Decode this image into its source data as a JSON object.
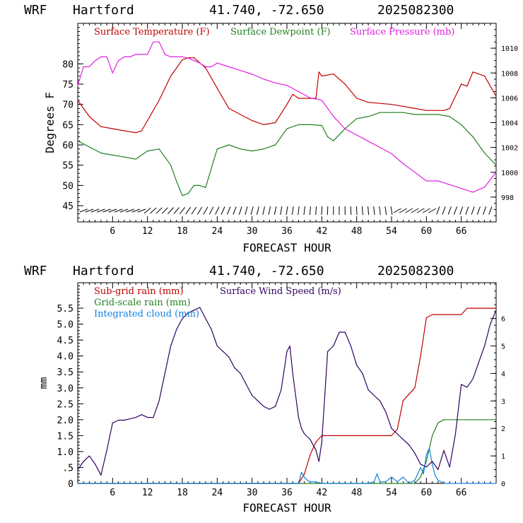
{
  "header": {
    "model": "WRF",
    "station": "Hartford",
    "coords": "41.740, -72.650",
    "run": "2025082300"
  },
  "colors": {
    "temp": "#c00000",
    "dewpoint": "#208020",
    "pressure": "#e020e0",
    "rain_sub": "#c00000",
    "rain_grid": "#208020",
    "cloud": "#1080e0",
    "wind": "#300060"
  },
  "chart_data": [
    {
      "type": "line",
      "xlabel": "FORECAST HOUR",
      "ylabel": "Degrees F",
      "xticks": [
        6,
        12,
        18,
        24,
        30,
        36,
        42,
        48,
        54,
        60,
        66
      ],
      "xlim": [
        0,
        72
      ],
      "ylim": [
        41,
        90
      ],
      "yticks": [
        45,
        50,
        55,
        60,
        65,
        70,
        75,
        80
      ],
      "y2lim": [
        996,
        1012
      ],
      "y2ticks": [
        998,
        1000,
        1002,
        1004,
        1006,
        1008,
        1010
      ],
      "wind_barbs": "surface wind barbs along bottom of panel",
      "series": [
        {
          "name": "Surface Temperature (F)",
          "axis": "left",
          "x": [
            0,
            2,
            4,
            6,
            8,
            10,
            11,
            12,
            14,
            16,
            18,
            19,
            20,
            22,
            24,
            26,
            28,
            30,
            32,
            34,
            36,
            37,
            38,
            40,
            41,
            41.5,
            42,
            44,
            46,
            48,
            50,
            54,
            58,
            60,
            62,
            63,
            64,
            66,
            67,
            68,
            70,
            72
          ],
          "values": [
            71,
            67,
            64.5,
            64,
            63.5,
            63,
            63.5,
            66,
            71,
            77,
            81,
            81.5,
            81.5,
            79,
            74,
            69,
            67.5,
            66,
            65,
            65.5,
            70,
            72.5,
            71.5,
            71.5,
            71.5,
            78,
            77,
            77.5,
            75,
            71.5,
            70.5,
            70,
            69,
            68.5,
            68.5,
            68.5,
            69,
            75,
            74.5,
            78,
            77,
            72
          ]
        },
        {
          "name": "Surface Dewpoint (F)",
          "axis": "left",
          "x": [
            0,
            2,
            4,
            6,
            8,
            10,
            12,
            14,
            16,
            17,
            18,
            19,
            20,
            21,
            22,
            24,
            26,
            28,
            30,
            32,
            34,
            36,
            38,
            40,
            42,
            43,
            44,
            46,
            48,
            50,
            52,
            54,
            56,
            58,
            60,
            62,
            64,
            66,
            68,
            70,
            72
          ],
          "values": [
            61,
            59.5,
            58,
            57.5,
            57,
            56.5,
            58.5,
            59,
            55,
            51,
            47.5,
            48,
            50,
            50,
            49.5,
            59,
            60,
            59,
            58.5,
            59,
            60,
            64,
            65,
            65,
            64.8,
            62,
            61,
            64,
            66.5,
            67,
            68,
            68,
            68,
            67.5,
            67.5,
            67.5,
            67,
            65,
            62,
            58,
            55
          ]
        },
        {
          "name": "Surface Pressure (mb)",
          "axis": "right",
          "x": [
            0,
            1,
            2,
            3,
            4,
            5,
            6,
            7,
            8,
            9,
            10,
            11,
            12,
            13,
            14,
            15,
            16,
            17,
            18,
            19,
            20,
            21,
            22,
            23,
            24,
            26,
            28,
            30,
            32,
            34,
            36,
            38,
            40,
            42,
            44,
            46,
            48,
            50,
            52,
            54,
            56,
            58,
            60,
            62,
            64,
            66,
            68,
            70,
            72
          ],
          "values": [
            1007,
            1008.5,
            1008.5,
            1009,
            1009.3,
            1009.3,
            1008,
            1009,
            1009.3,
            1009.3,
            1009.5,
            1009.5,
            1009.5,
            1010.5,
            1010.5,
            1009.5,
            1009.3,
            1009.3,
            1009.3,
            1009.2,
            1009,
            1008.8,
            1008.5,
            1008.5,
            1008.8,
            1008.5,
            1008.2,
            1007.9,
            1007.5,
            1007.2,
            1007,
            1006.5,
            1006,
            1005.8,
            1004.5,
            1003.5,
            1003,
            1002.5,
            1002,
            1001.5,
            1000.7,
            1000,
            999.3,
            999.3,
            999,
            998.7,
            998.4,
            998.8,
            1000
          ]
        }
      ]
    },
    {
      "type": "line",
      "xlabel": "FORECAST HOUR",
      "ylabel": "mm",
      "xticks": [
        6,
        12,
        18,
        24,
        30,
        36,
        42,
        48,
        54,
        60,
        66
      ],
      "xlim": [
        0,
        72
      ],
      "ylim": [
        0,
        6.3
      ],
      "yticks": [
        0,
        0.5,
        1.0,
        1.5,
        2.0,
        2.5,
        3.0,
        3.5,
        4.0,
        4.5,
        5.0,
        5.5
      ],
      "ytick_labels": [
        "0",
        ".5",
        "1.0",
        "1.5",
        "2.0",
        "2.5",
        "3.0",
        "3.5",
        "4.0",
        "4.5",
        "5.0",
        "5.5"
      ],
      "y2lim": [
        0,
        7.3
      ],
      "y2ticks": [
        0,
        1,
        2,
        3,
        4,
        5,
        6
      ],
      "series": [
        {
          "name": "Sub-grid rain (mm)",
          "axis": "left",
          "x": [
            0,
            38,
            39,
            40,
            41,
            42,
            54,
            55,
            56,
            57,
            58,
            59,
            60,
            61,
            62,
            63,
            64,
            65,
            66,
            67,
            68,
            69,
            70,
            72
          ],
          "values": [
            0,
            0,
            0.3,
            0.9,
            1.3,
            1.5,
            1.5,
            1.7,
            2.6,
            2.8,
            3.0,
            4.0,
            5.2,
            5.3,
            5.3,
            5.3,
            5.3,
            5.3,
            5.3,
            5.5,
            5.5,
            5.5,
            5.5,
            5.5
          ]
        },
        {
          "name": "Grid-scale rain (mm)",
          "axis": "left",
          "x": [
            0,
            58,
            59,
            60,
            61,
            62,
            63,
            72
          ],
          "values": [
            0,
            0,
            0.2,
            0.7,
            1.5,
            1.9,
            2.0,
            2.0
          ]
        },
        {
          "name": "Integrated cloud (mm)",
          "axis": "left",
          "x": [
            0,
            38,
            38.5,
            39,
            39.5,
            40,
            41,
            42,
            43,
            50,
            51,
            51.5,
            52,
            53,
            54,
            55,
            56,
            57,
            57.5,
            58,
            58.5,
            59,
            59.5,
            60,
            60.5,
            61,
            61.5,
            62,
            62.5,
            63,
            72
          ],
          "values": [
            0,
            0,
            0.35,
            0.2,
            0.1,
            0.05,
            0.05,
            0,
            0,
            0,
            0.05,
            0.3,
            0.05,
            0.05,
            0.2,
            0.05,
            0.2,
            0,
            0.05,
            0.1,
            0.3,
            0.5,
            0.3,
            0.9,
            1.1,
            0.6,
            0.25,
            0.1,
            0.05,
            0,
            0
          ]
        },
        {
          "name": "Surface Wind Speed (m/s)",
          "axis": "right",
          "x": [
            0,
            1,
            2,
            3,
            4,
            5,
            6,
            7,
            8,
            9,
            10,
            11,
            12,
            13,
            14,
            15,
            16,
            17,
            18,
            19,
            20,
            21,
            22,
            23,
            24,
            25,
            26,
            27,
            28,
            29,
            30,
            31,
            32,
            33,
            34,
            35,
            36,
            36.5,
            37,
            38,
            38.5,
            39,
            40,
            41,
            41.5,
            42,
            43,
            44,
            45,
            46,
            47,
            48,
            49,
            50,
            51,
            52,
            53,
            54,
            55,
            56,
            57,
            58,
            59,
            60,
            61,
            62,
            63,
            64,
            65,
            66,
            67,
            68,
            69,
            70,
            71,
            72
          ],
          "values": [
            0.5,
            0.8,
            1.0,
            0.7,
            0.3,
            1.2,
            2.2,
            2.3,
            2.3,
            2.35,
            2.4,
            2.5,
            2.4,
            2.4,
            3.0,
            4.0,
            5.0,
            5.6,
            6.0,
            6.2,
            6.3,
            6.4,
            6.0,
            5.6,
            5.0,
            4.8,
            4.6,
            4.2,
            4.0,
            3.6,
            3.2,
            3.0,
            2.8,
            2.7,
            2.8,
            3.4,
            4.8,
            5.0,
            4.0,
            2.4,
            2.0,
            1.8,
            1.6,
            1.2,
            0.8,
            1.5,
            4.8,
            5.0,
            5.5,
            5.5,
            5.0,
            4.3,
            4.0,
            3.4,
            3.2,
            3.0,
            2.6,
            2.0,
            1.8,
            1.6,
            1.4,
            1.1,
            0.7,
            0.6,
            0.8,
            0.5,
            1.2,
            0.6,
            1.8,
            3.6,
            3.5,
            3.8,
            4.4,
            5.0,
            5.8,
            6.3
          ]
        }
      ]
    }
  ]
}
